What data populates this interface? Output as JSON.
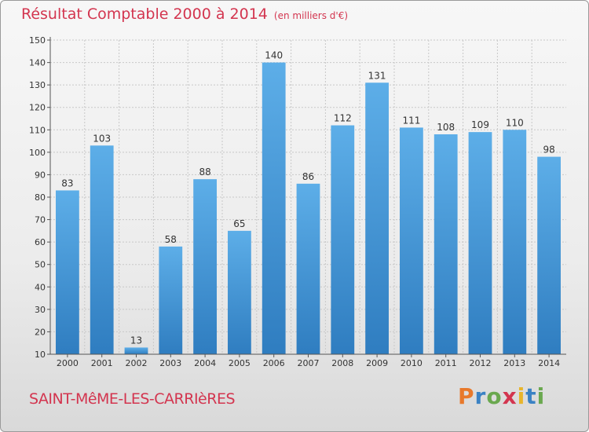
{
  "header": {
    "title": "Résultat Comptable 2000 à 2014",
    "subtitle": "(en milliers d'€)"
  },
  "footer": {
    "commune": "SAINT-MêME-LES-CARRIèRES",
    "brand": "Proxiti",
    "brand_colors": [
      "#e8792b",
      "#3b82c4",
      "#6aa84f",
      "#d3354f",
      "#e8b52b",
      "#3b82c4",
      "#6aa84f"
    ]
  },
  "colors": {
    "bar_top": "#5daee8",
    "bar_bottom": "#2f7dc0",
    "title": "#d3354f",
    "axis": "#555555"
  },
  "chart_data": {
    "type": "bar",
    "title": "Résultat Comptable 2000 à 2014",
    "subtitle": "(en milliers d'€)",
    "categories": [
      "2000",
      "2001",
      "2002",
      "2003",
      "2004",
      "2005",
      "2006",
      "2007",
      "2008",
      "2009",
      "2010",
      "2011",
      "2012",
      "2013",
      "2014"
    ],
    "values": [
      83,
      103,
      13,
      58,
      88,
      65,
      140,
      86,
      112,
      131,
      111,
      108,
      109,
      110,
      98
    ],
    "ylim": [
      10,
      150
    ],
    "yticks": [
      10,
      20,
      30,
      40,
      50,
      60,
      70,
      80,
      90,
      100,
      110,
      120,
      130,
      140,
      150
    ],
    "grid": true,
    "data_labels": true
  }
}
